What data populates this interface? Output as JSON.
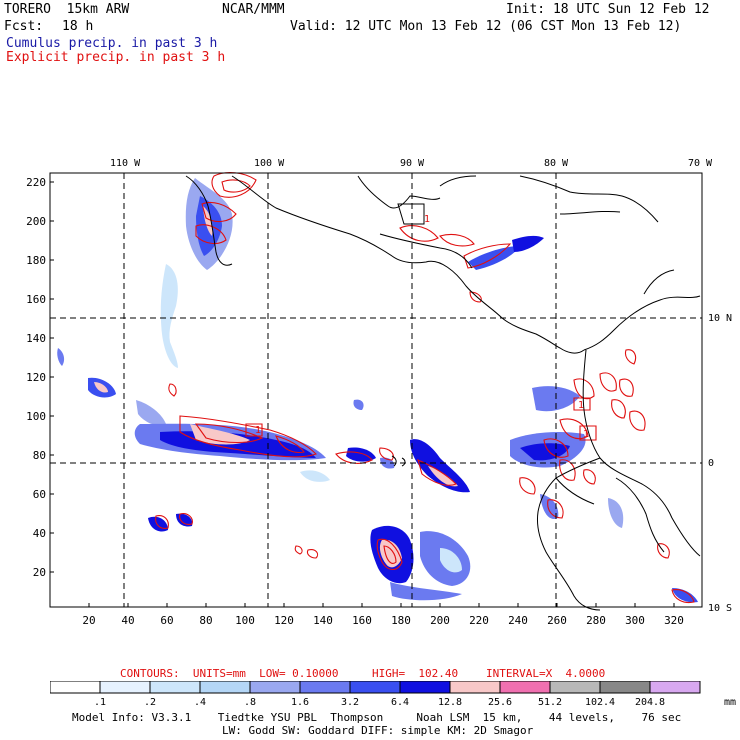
{
  "header": {
    "model": "TORERO  15km ARW",
    "center": "NCAR/MMM",
    "init": "Init: 18 UTC Sun 12 Feb 12",
    "fcst_label": "Fcst:",
    "fcst_value": "18 h",
    "valid": "Valid: 12 UTC Mon 13 Feb 12 (06 CST Mon 13 Feb 12)",
    "field1": "Cumulus precip. in past 3 h",
    "field2": "Explicit precip. in past 3 h",
    "field1_color": "#1a1aa6",
    "field2_color": "#e01010"
  },
  "map": {
    "lon_labels": [
      "110 W",
      "100 W",
      "90 W",
      "80 W",
      "70 W"
    ],
    "lat_labels": [
      "10 N",
      "0",
      "10 S"
    ],
    "y_ticks": [
      "220",
      "200",
      "180",
      "160",
      "140",
      "120",
      "100",
      "80",
      "60",
      "40",
      "20"
    ],
    "x_ticks": [
      "20",
      "40",
      "60",
      "80",
      "100",
      "120",
      "140",
      "160",
      "180",
      "200",
      "220",
      "240",
      "260",
      "280",
      "300",
      "320"
    ],
    "contour_labels": [
      "1",
      "1",
      "1",
      "1"
    ]
  },
  "contours": {
    "units_label": "CONTOURS:  UNITS=mm  LOW= 0.10000",
    "high_label": "HIGH=  102.40",
    "interval_label": "INTERVAL=X  4.0000"
  },
  "colorbar": {
    "labels": [
      ".1",
      ".2",
      ".4",
      ".8",
      "1.6",
      "3.2",
      "6.4",
      "12.8",
      "25.6",
      "51.2",
      "102.4",
      "204.8"
    ],
    "units": "mm",
    "colors": [
      "#ffffff",
      "#e6f2ff",
      "#cde6fb",
      "#b4d6f6",
      "#9aa8f0",
      "#6b7af0",
      "#3a4ff0",
      "#1010e0",
      "#f8c8c8",
      "#f070b0",
      "#b8b8b8",
      "#888888",
      "#d8a8f0"
    ]
  },
  "footer": {
    "line1": "Model Info: V3.3.1    Tiedtke YSU PBL  Thompson     Noah LSM  15 km,    44 levels,    76 sec",
    "line2": "LW: Godd SW: Goddard DIFF: simple KM: 2D Smagor"
  }
}
